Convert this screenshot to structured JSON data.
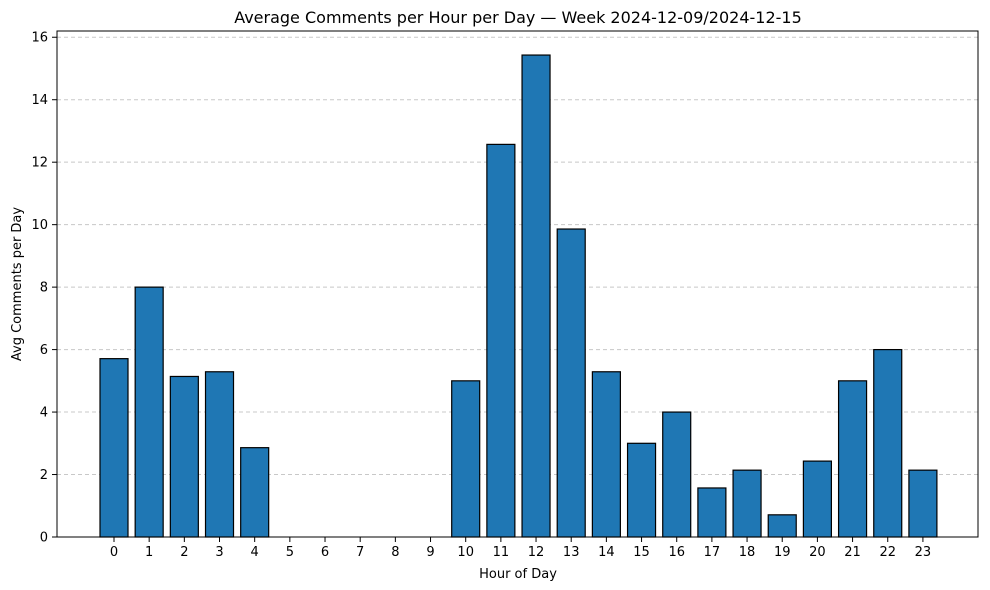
{
  "chart_data": {
    "type": "bar",
    "title": "Average Comments per Hour per Day — Week 2024-12-09/2024-12-15",
    "xlabel": "Hour of Day",
    "ylabel": "Avg Comments per Day",
    "categories": [
      "0",
      "1",
      "2",
      "3",
      "4",
      "5",
      "6",
      "7",
      "8",
      "9",
      "10",
      "11",
      "12",
      "13",
      "14",
      "15",
      "16",
      "17",
      "18",
      "19",
      "20",
      "21",
      "22",
      "23"
    ],
    "values": [
      5.71,
      8.0,
      5.14,
      5.29,
      2.86,
      0,
      0,
      0,
      0,
      0,
      5.0,
      12.57,
      15.43,
      9.86,
      5.29,
      3.0,
      4.0,
      1.57,
      2.14,
      0.71,
      2.43,
      5.0,
      6.0,
      2.14
    ],
    "ylim": [
      0,
      16.2
    ],
    "yticks": [
      0,
      2,
      4,
      6,
      8,
      10,
      12,
      14,
      16
    ],
    "grid": "y-dashed",
    "bar_color": "#1f77b4",
    "edge_color": "#000000",
    "grid_color": "#c8c8c8"
  }
}
